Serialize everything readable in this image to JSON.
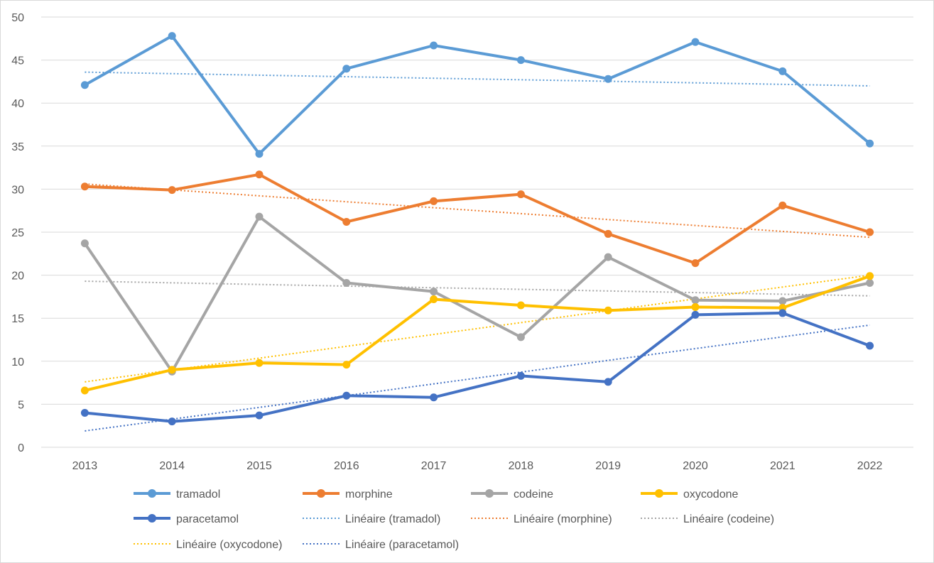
{
  "chart_data": {
    "type": "line",
    "title": "",
    "xlabel": "",
    "ylabel": "",
    "ylim": [
      0,
      50
    ],
    "yticks": [
      0,
      5,
      10,
      15,
      20,
      25,
      30,
      35,
      40,
      45,
      50
    ],
    "grid": "horizontal",
    "legend_position": "bottom",
    "categories": [
      "2013",
      "2014",
      "2015",
      "2016",
      "2017",
      "2018",
      "2019",
      "2020",
      "2021",
      "2022"
    ],
    "series": [
      {
        "name": "tramadol",
        "color": "#5b9bd5",
        "values": [
          42.1,
          47.8,
          34.1,
          44.0,
          46.7,
          45.0,
          42.8,
          47.1,
          43.7,
          35.3
        ]
      },
      {
        "name": "morphine",
        "color": "#ed7d31",
        "values": [
          30.3,
          29.9,
          31.7,
          26.2,
          28.6,
          29.4,
          24.8,
          21.4,
          28.1,
          25.0
        ]
      },
      {
        "name": "codeine",
        "color": "#a5a5a5",
        "values": [
          23.7,
          8.8,
          26.8,
          19.1,
          18.1,
          12.8,
          22.1,
          17.1,
          17.0,
          19.1
        ]
      },
      {
        "name": "oxycodone",
        "color": "#ffc000",
        "values": [
          6.6,
          9.0,
          9.8,
          9.6,
          17.2,
          16.5,
          15.9,
          16.3,
          16.2,
          19.9
        ]
      },
      {
        "name": "paracetamol",
        "color": "#4472c4",
        "values": [
          4.0,
          3.0,
          3.7,
          6.0,
          5.8,
          8.3,
          7.6,
          15.4,
          15.6,
          11.8
        ]
      }
    ],
    "trendlines": [
      {
        "name": "Linéaire (tramadol)",
        "color": "#5b9bd5",
        "values": [
          43.6,
          42.0
        ]
      },
      {
        "name": "Linéaire (morphine)",
        "color": "#ed7d31",
        "values": [
          30.6,
          24.4
        ]
      },
      {
        "name": "Linéaire (codeine)",
        "color": "#a5a5a5",
        "values": [
          19.3,
          17.6
        ]
      },
      {
        "name": "Linéaire (oxycodone)",
        "color": "#ffc000",
        "values": [
          7.6,
          20.0
        ]
      },
      {
        "name": "Linéaire (paracetamol)",
        "color": "#4472c4",
        "values": [
          1.9,
          14.2
        ]
      }
    ]
  }
}
